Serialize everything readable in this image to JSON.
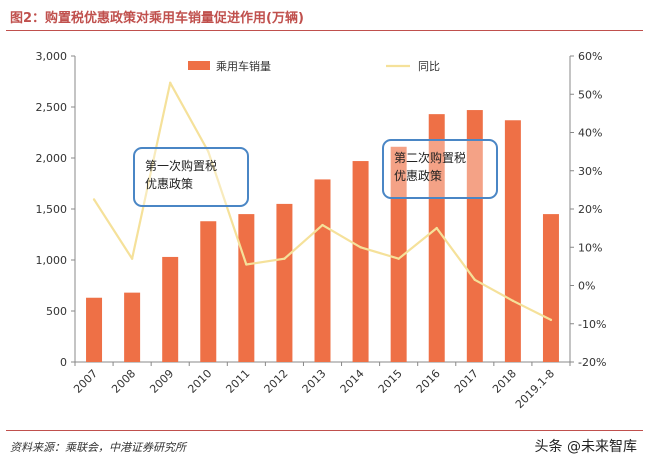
{
  "title": "图2：购置税优惠政策对乘用车销量促进作用(万辆)",
  "source": "资料来源：乘联会，中港证券研究所",
  "watermark": "头条 @未来智库",
  "annotations": [
    {
      "line1": "第一次购置税",
      "line2": "优惠政策"
    },
    {
      "line1": "第二次购置税",
      "line2": "优惠政策"
    }
  ],
  "colors": {
    "bar": "#ee7046",
    "line": "#f5e19a",
    "accent": "#c0504d",
    "box": "#4a86c5"
  },
  "chart_data": {
    "type": "bar",
    "categories": [
      "2007",
      "2008",
      "2009",
      "2010",
      "2011",
      "2012",
      "2013",
      "2014",
      "2015",
      "2016",
      "2017",
      "2018",
      "2019.1-8"
    ],
    "series": [
      {
        "name": "乘用车销量",
        "type": "bar",
        "axis": "left",
        "values": [
          630,
          680,
          1030,
          1380,
          1450,
          1550,
          1790,
          1970,
          2110,
          2430,
          2470,
          2370,
          1450
        ]
      },
      {
        "name": "同比",
        "type": "line",
        "axis": "right",
        "values": [
          22.5,
          7.0,
          53.0,
          35.0,
          5.5,
          7.0,
          15.8,
          10.0,
          7.0,
          15.0,
          1.5,
          -4.0,
          -9.0
        ]
      }
    ],
    "left_axis": {
      "ylim": [
        0,
        3000
      ],
      "ticks": [
        "0",
        "500",
        "1,000",
        "1,500",
        "2,000",
        "2,500",
        "3,000"
      ],
      "tick_values": [
        0,
        500,
        1000,
        1500,
        2000,
        2500,
        3000
      ]
    },
    "right_axis": {
      "ylim": [
        -20,
        60
      ],
      "ticks": [
        "-20%",
        "-10%",
        "0%",
        "10%",
        "20%",
        "30%",
        "40%",
        "50%",
        "60%"
      ],
      "tick_values": [
        -20,
        -10,
        0,
        10,
        20,
        30,
        40,
        50,
        60
      ]
    },
    "legend": [
      "乘用车销量",
      "同比"
    ],
    "legend_position": "top",
    "grid": false
  }
}
